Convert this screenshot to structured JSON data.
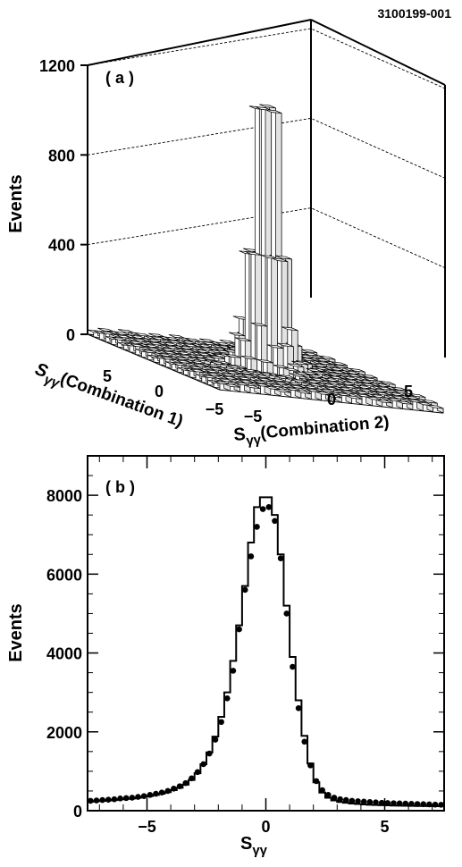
{
  "figure_id": "3100199-001",
  "chart_data": [
    {
      "type": "bar3d",
      "panel_label": "( a )",
      "ylabel": "Events",
      "zlim": [
        0,
        1200
      ],
      "z_ticks": [
        "0",
        "400",
        "800",
        "1200"
      ],
      "axis1": {
        "label_main": "S",
        "label_sub": "γγ",
        "label_rest": "(Combination 1)",
        "ticks": [
          "5",
          "0",
          "−5"
        ]
      },
      "axis2": {
        "label_main": "S",
        "label_sub": "γγ",
        "label_rest": "(Combination 2)",
        "ticks": [
          "−5",
          "0",
          "5"
        ]
      },
      "peak_value": 1190,
      "peak_position": [
        0,
        0
      ],
      "grid": "dashed"
    },
    {
      "type": "histogram_with_points",
      "panel_label": "( b )",
      "xlabel_main": "S",
      "xlabel_sub": "γγ",
      "ylabel": "Events",
      "xlim": [
        -7.5,
        7.5
      ],
      "ylim": [
        0,
        9000
      ],
      "x_ticks": [
        "−5",
        "0",
        "5"
      ],
      "y_ticks": [
        "0",
        "2000",
        "4000",
        "6000",
        "8000"
      ],
      "histogram": {
        "bin_edges": [
          -7.5,
          -7.25,
          -7.0,
          -6.75,
          -6.5,
          -6.25,
          -6.0,
          -5.75,
          -5.5,
          -5.25,
          -5.0,
          -4.75,
          -4.5,
          -4.25,
          -4.0,
          -3.75,
          -3.5,
          -3.25,
          -3.0,
          -2.75,
          -2.5,
          -2.25,
          -2.0,
          -1.75,
          -1.5,
          -1.25,
          -1.0,
          -0.75,
          -0.5,
          -0.25,
          0.0,
          0.25,
          0.5,
          0.75,
          1.0,
          1.25,
          1.5,
          1.75,
          2.0,
          2.25,
          2.5,
          2.75,
          3.0,
          3.25,
          3.5,
          3.75,
          4.0,
          4.25,
          4.5,
          4.75,
          5.0,
          5.25,
          5.5,
          5.75,
          6.0,
          6.25,
          6.5,
          6.75,
          7.0,
          7.25,
          7.5
        ],
        "values": [
          230,
          240,
          250,
          260,
          270,
          290,
          300,
          310,
          330,
          350,
          370,
          400,
          430,
          470,
          520,
          580,
          660,
          780,
          950,
          1180,
          1480,
          1880,
          2380,
          3000,
          3800,
          4700,
          5700,
          6800,
          7700,
          7950,
          7950,
          7500,
          6500,
          5200,
          3900,
          2800,
          1900,
          1200,
          720,
          460,
          330,
          260,
          220,
          200,
          180,
          170,
          160,
          150,
          145,
          140,
          135,
          130,
          128,
          125,
          122,
          120,
          118,
          116,
          114,
          112
        ]
      },
      "points": {
        "x": [
          -7.375,
          -7.125,
          -6.875,
          -6.625,
          -6.375,
          -6.125,
          -5.875,
          -5.625,
          -5.375,
          -5.125,
          -4.875,
          -4.625,
          -4.375,
          -4.125,
          -3.875,
          -3.625,
          -3.375,
          -3.125,
          -2.875,
          -2.625,
          -2.375,
          -2.125,
          -1.875,
          -1.625,
          -1.375,
          -1.125,
          -0.875,
          -0.625,
          -0.375,
          -0.125,
          0.125,
          0.375,
          0.625,
          0.875,
          1.125,
          1.375,
          1.625,
          1.875,
          2.125,
          2.375,
          2.625,
          2.875,
          3.125,
          3.375,
          3.625,
          3.875,
          4.125,
          4.375,
          4.625,
          4.875,
          5.125,
          5.375,
          5.625,
          5.875,
          6.125,
          6.375,
          6.625,
          6.875,
          7.125,
          7.375
        ],
        "y": [
          250,
          260,
          270,
          280,
          290,
          310,
          320,
          330,
          350,
          370,
          400,
          430,
          460,
          500,
          560,
          620,
          700,
          820,
          980,
          1180,
          1450,
          1800,
          2250,
          2850,
          3550,
          4600,
          5600,
          6450,
          7200,
          7650,
          7700,
          7350,
          6400,
          5000,
          3650,
          2600,
          1750,
          1150,
          750,
          520,
          400,
          330,
          290,
          270,
          250,
          240,
          230,
          220,
          210,
          200,
          195,
          190,
          185,
          180,
          175,
          170,
          165,
          160,
          155,
          150
        ]
      }
    }
  ]
}
